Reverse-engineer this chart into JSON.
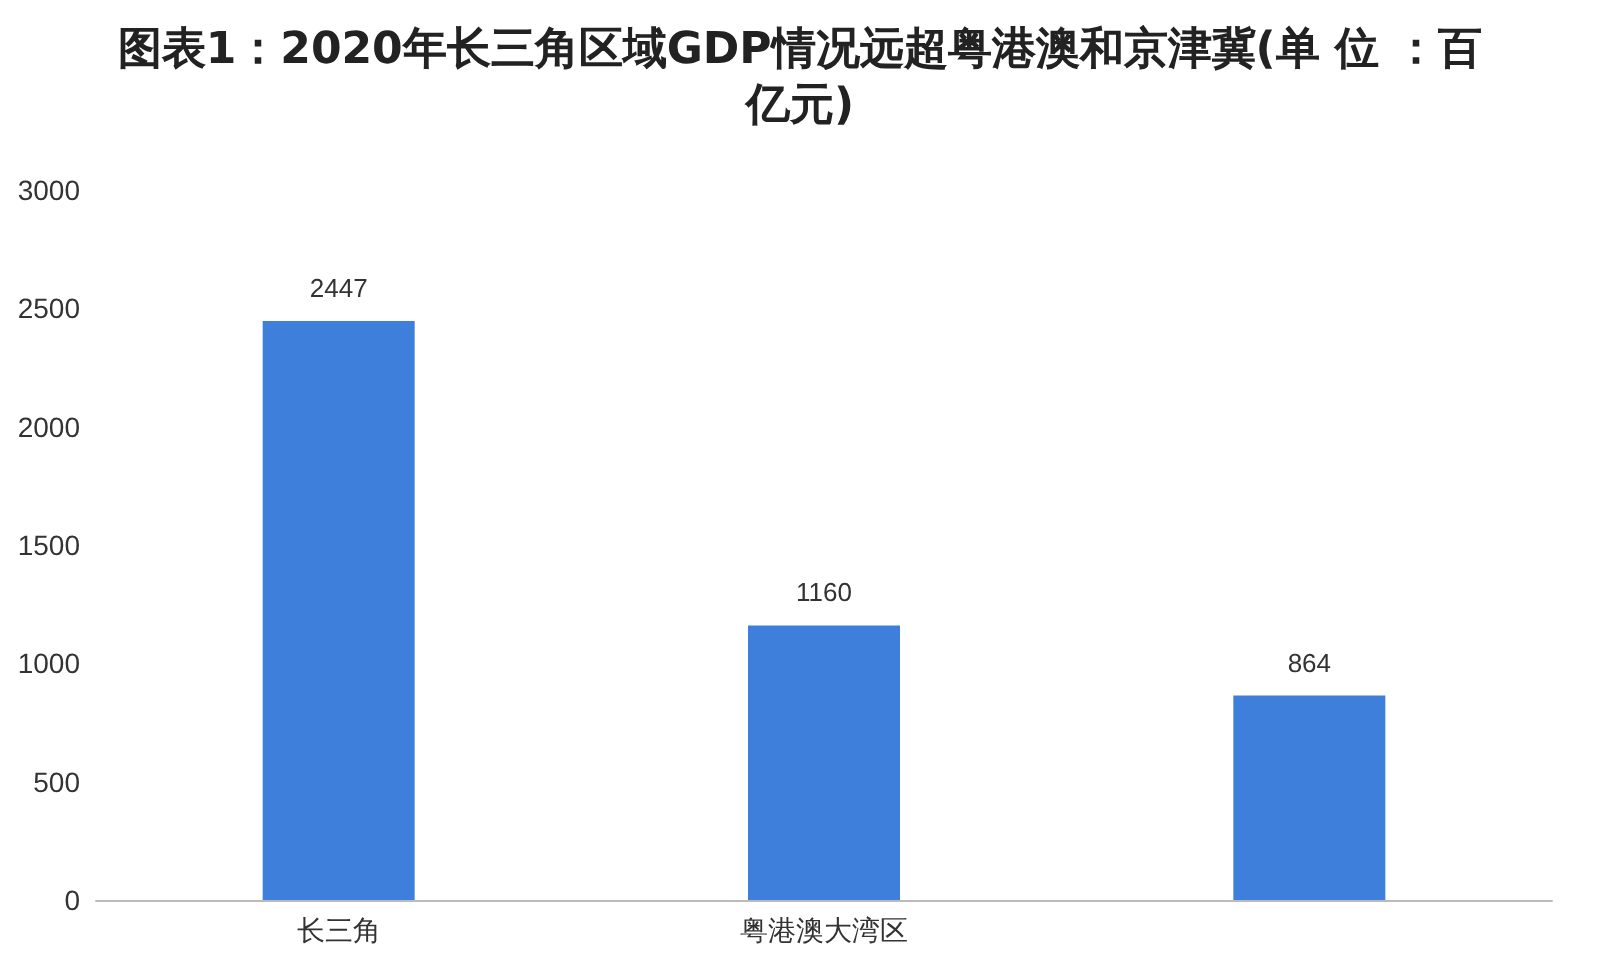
{
  "chart_data": {
    "type": "bar",
    "title": "图表1：2020年长三角区域GDP情况远超粤港澳和京津冀(单 位 ：百亿元)",
    "categories": [
      "长三角",
      "粤港澳大湾区",
      null
    ],
    "values": [
      2447,
      1160,
      864
    ],
    "color": "#3f7fdc",
    "ylim": [
      0,
      3000
    ],
    "yticks": [
      0,
      500,
      1000,
      1500,
      2000,
      2500,
      3000
    ],
    "grid": false,
    "data_labels": true
  }
}
